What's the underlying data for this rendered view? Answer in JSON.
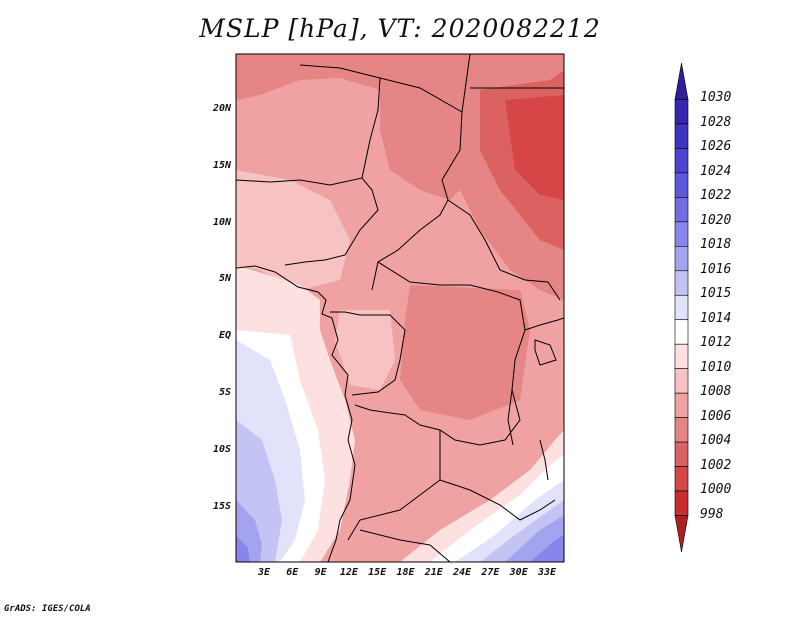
{
  "title": "MSLP [hPa], VT: 2020082212",
  "credit": "GrADS: IGES/COLA",
  "map": {
    "lat_labels": [
      "20N",
      "15N",
      "10N",
      "5N",
      "EQ",
      "5S",
      "10S",
      "15S"
    ],
    "lon_labels": [
      "3E",
      "6E",
      "9E",
      "12E",
      "15E",
      "18E",
      "21E",
      "24E",
      "27E",
      "30E",
      "33E"
    ],
    "lon_range": [
      0,
      35
    ],
    "lat_range": [
      -20,
      25
    ]
  },
  "colorbar": {
    "levels": [
      "1030",
      "1028",
      "1026",
      "1024",
      "1022",
      "1020",
      "1018",
      "1016",
      "1015",
      "1014",
      "1012",
      "1010",
      "1008",
      "1006",
      "1004",
      "1002",
      "1000",
      "998"
    ],
    "colors": [
      "#2f1e9b",
      "#3526b0",
      "#3e33c4",
      "#4c44d3",
      "#5c59dc",
      "#706ee3",
      "#8886ea",
      "#a3a3ef",
      "#c3c3f4",
      "#e2e2fa",
      "#ffffff",
      "#fde1e1",
      "#f7c2c2",
      "#f0a2a2",
      "#e58585",
      "#dc6262",
      "#d64646",
      "#c82e2e",
      "#b01f1f"
    ]
  }
}
